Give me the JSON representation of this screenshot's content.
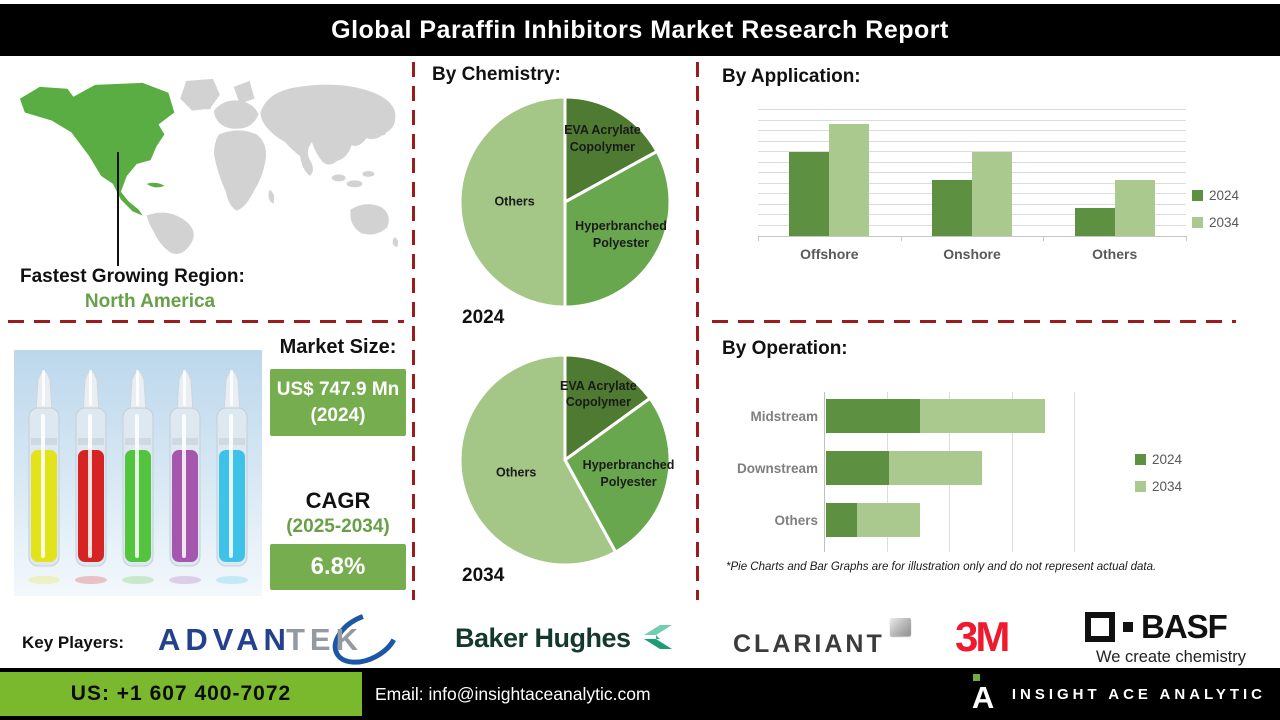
{
  "header": {
    "title": "Global Paraffin Inhibitors Market Research Report"
  },
  "map_section": {
    "region_label": "Fastest Growing Region:",
    "region_value": "North America"
  },
  "market_size": {
    "heading": "Market Size:",
    "value": "US$ 747.9 Mn (2024)",
    "cagr_label": "CAGR",
    "cagr_period": "(2025-2034)",
    "cagr_value": "6.8%"
  },
  "footnote": "*Pie Charts and Bar Graphs are for illustration only and do not represent actual data.",
  "key_players": {
    "label": "Key Players:",
    "advantek_1": "ADVAN",
    "advantek_2": "TEK",
    "baker_hughes": "Baker Hughes",
    "clariant": "CLARIANT",
    "threem": "3M",
    "basf": "BASF",
    "basf_tagline": "We create chemistry"
  },
  "footer": {
    "phone": "US: +1 607 400-7072",
    "email": "Email: info@insightaceanalytic.com",
    "brand": "INSIGHT ACE ANALYTIC"
  },
  "colors": {
    "dash_red": "#9e1b1c",
    "pie_dark_green": "#4e7b31",
    "pie_mid_green": "#69a74e",
    "pie_light_green": "#a4c687",
    "bar_2024": "#5d9141",
    "bar_2034": "#a9c98f",
    "box_green": "#76ad4e",
    "map_highlight_green": "#5aad42",
    "map_gray": "#d2d2d2",
    "footer_green": "#7ab82d"
  },
  "chart_data": [
    {
      "id": "chemistry_2024",
      "type": "pie",
      "title": "By Chemistry:",
      "year_label": "2024",
      "slices": [
        {
          "label": "EVA Acrylate Copolymer",
          "value": 17,
          "color": "#4e7b31"
        },
        {
          "label": "Hyperbranched Polyester",
          "value": 33,
          "color": "#69a74e"
        },
        {
          "label": "Others",
          "value": 50,
          "color": "#a4c687"
        }
      ],
      "note": "illustration only"
    },
    {
      "id": "chemistry_2034",
      "type": "pie",
      "year_label": "2034",
      "slices": [
        {
          "label": "EVA Acrylate Copolymer",
          "value": 15,
          "color": "#4e7b31"
        },
        {
          "label": "Hyperbranched Polyester",
          "value": 27,
          "color": "#69a74e"
        },
        {
          "label": "Others",
          "value": 58,
          "color": "#a4c687"
        }
      ],
      "note": "illustration only"
    },
    {
      "id": "application",
      "type": "bar",
      "orientation": "vertical",
      "title": "By Application:",
      "categories": [
        "Offshore",
        "Onshore",
        "Others"
      ],
      "series": [
        {
          "name": "2024",
          "color": "#5d9141",
          "values": [
            30,
            20,
            10
          ]
        },
        {
          "name": "2034",
          "color": "#a9c98f",
          "values": [
            40,
            30,
            20
          ]
        }
      ],
      "ylim": [
        0,
        45
      ],
      "gridlines": 12,
      "legend_position": "right",
      "note": "illustration only"
    },
    {
      "id": "operation",
      "type": "bar",
      "orientation": "horizontal",
      "stacked": true,
      "title": "By Operation:",
      "categories": [
        "Midstream",
        "Downstream",
        "Others"
      ],
      "series": [
        {
          "name": "2024",
          "color": "#5d9141",
          "values": [
            1.5,
            1.0,
            0.5
          ]
        },
        {
          "name": "2034",
          "color": "#a9c98f",
          "values": [
            2.0,
            1.5,
            1.0
          ]
        }
      ],
      "xlim": [
        0,
        4
      ],
      "gridlines": 4,
      "legend_position": "right",
      "note": "illustration only"
    }
  ]
}
